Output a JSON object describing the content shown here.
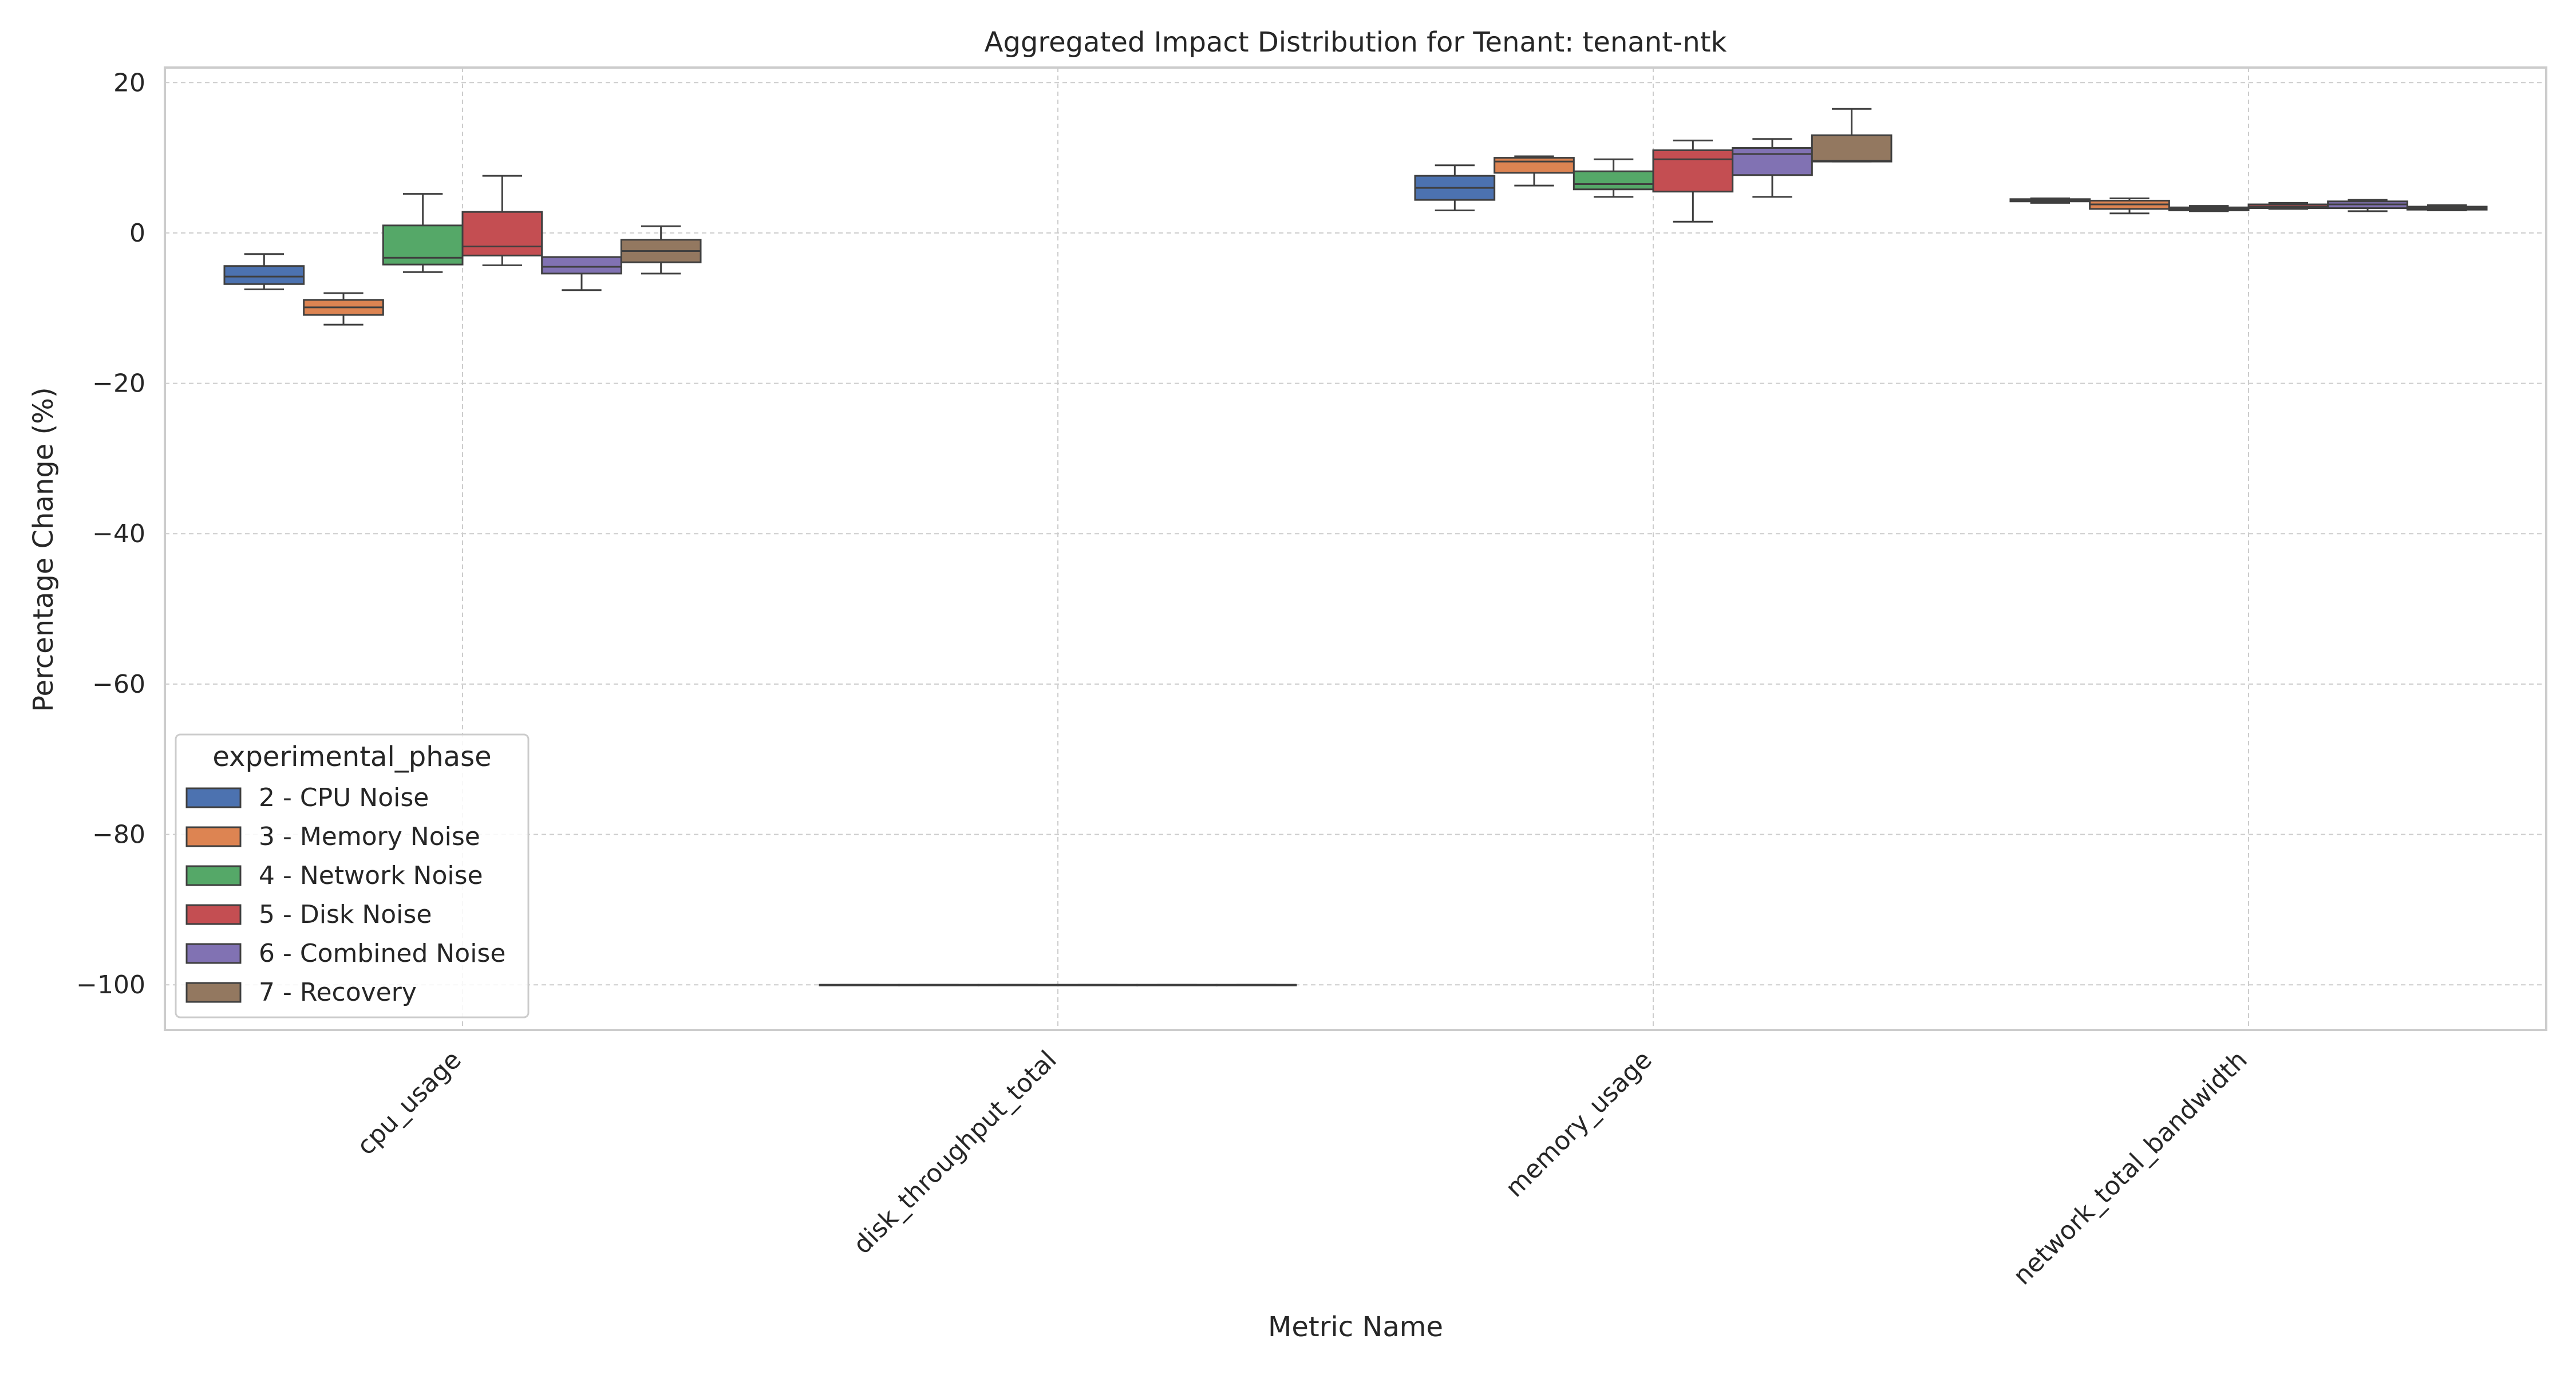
{
  "chart_data": {
    "type": "box",
    "title": "Aggregated Impact Distribution for Tenant: tenant-ntk",
    "xlabel": "Metric Name",
    "ylabel": "Percentage Change (%)",
    "ylim": [
      -106,
      22
    ],
    "yticks": [
      20,
      0,
      -20,
      -40,
      -60,
      -80,
      -100
    ],
    "grid": true,
    "categories": [
      "cpu_usage",
      "disk_throughput_total",
      "memory_usage",
      "network_total_bandwidth"
    ],
    "legend": {
      "title": "experimental_phase",
      "placement": "lower-left"
    },
    "series": [
      {
        "name": "2 - CPU Noise",
        "color": "#4c72b0",
        "boxes": [
          {
            "min": -7.5,
            "q1": -6.8,
            "median": -5.8,
            "q3": -4.4,
            "max": -2.8
          },
          {
            "min": -100,
            "q1": -100,
            "median": -100,
            "q3": -100,
            "max": -100
          },
          {
            "min": 3.0,
            "q1": 4.4,
            "median": 6.0,
            "q3": 7.6,
            "max": 9.0
          },
          {
            "min": 4.0,
            "q1": 4.2,
            "median": 4.3,
            "q3": 4.5,
            "max": 4.6
          }
        ]
      },
      {
        "name": "3 - Memory Noise",
        "color": "#dd8452",
        "boxes": [
          {
            "min": -12.2,
            "q1": -10.9,
            "median": -9.9,
            "q3": -8.9,
            "max": -8.0
          },
          {
            "min": -100,
            "q1": -100,
            "median": -100,
            "q3": -100,
            "max": -100
          },
          {
            "min": 6.3,
            "q1": 8.0,
            "median": 9.5,
            "q3": 10.0,
            "max": 10.2
          },
          {
            "min": 2.6,
            "q1": 3.2,
            "median": 3.8,
            "q3": 4.3,
            "max": 4.6
          }
        ]
      },
      {
        "name": "4 - Network Noise",
        "color": "#55a868",
        "boxes": [
          {
            "min": -5.2,
            "q1": -4.2,
            "median": -3.3,
            "q3": 1.0,
            "max": 5.2
          },
          {
            "min": -100,
            "q1": -100,
            "median": -100,
            "q3": -100,
            "max": -100
          },
          {
            "min": 4.8,
            "q1": 5.8,
            "median": 6.5,
            "q3": 8.2,
            "max": 9.8
          },
          {
            "min": 2.9,
            "q1": 3.0,
            "median": 3.2,
            "q3": 3.4,
            "max": 3.6
          }
        ]
      },
      {
        "name": "5 - Disk Noise",
        "color": "#c44e52",
        "boxes": [
          {
            "min": -4.3,
            "q1": -3.0,
            "median": -1.8,
            "q3": 2.8,
            "max": 7.6
          },
          {
            "min": -100,
            "q1": -100,
            "median": -100,
            "q3": -100,
            "max": -100
          },
          {
            "min": 1.5,
            "q1": 5.5,
            "median": 9.8,
            "q3": 11.0,
            "max": 12.3
          },
          {
            "min": 3.2,
            "q1": 3.3,
            "median": 3.5,
            "q3": 3.8,
            "max": 4.0
          }
        ]
      },
      {
        "name": "6 - Combined Noise",
        "color": "#8172b3",
        "boxes": [
          {
            "min": -7.6,
            "q1": -5.4,
            "median": -4.5,
            "q3": -3.2,
            "max": -3.2
          },
          {
            "min": -100,
            "q1": -100,
            "median": -100,
            "q3": -100,
            "max": -100
          },
          {
            "min": 4.8,
            "q1": 7.7,
            "median": 10.5,
            "q3": 11.3,
            "max": 12.5
          },
          {
            "min": 2.9,
            "q1": 3.3,
            "median": 3.8,
            "q3": 4.2,
            "max": 4.4
          }
        ]
      },
      {
        "name": "7 - Recovery",
        "color": "#937860",
        "boxes": [
          {
            "min": -5.4,
            "q1": -3.9,
            "median": -2.4,
            "q3": -0.9,
            "max": 0.9
          },
          {
            "min": -100,
            "q1": -100,
            "median": -100,
            "q3": -100,
            "max": -100
          },
          {
            "min": 9.5,
            "q1": 9.5,
            "median": 9.6,
            "q3": 13.0,
            "max": 16.5
          },
          {
            "min": 3.0,
            "q1": 3.1,
            "median": 3.3,
            "q3": 3.5,
            "max": 3.7
          }
        ]
      }
    ]
  }
}
